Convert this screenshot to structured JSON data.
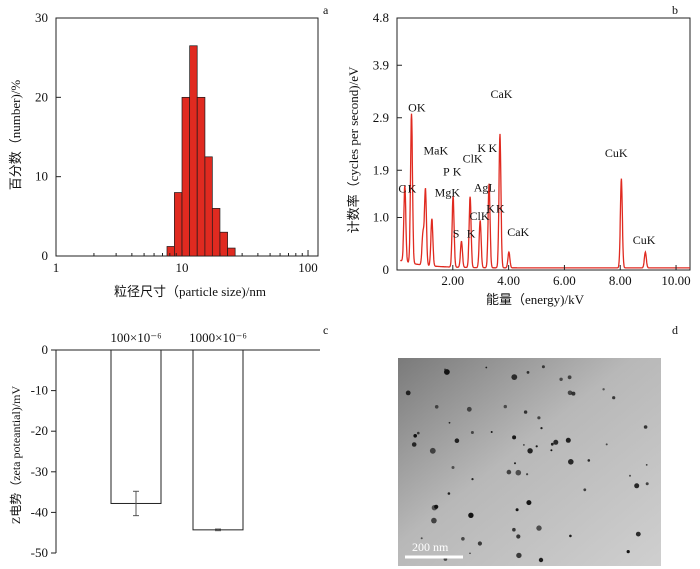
{
  "chart_data": [
    {
      "panel": "a",
      "type": "bar",
      "xlabel": "粒径尺寸（particle size)/nm",
      "ylabel": "百分数（number)/%",
      "xscale": "log",
      "xlim": [
        1,
        120
      ],
      "ylim": [
        0,
        30
      ],
      "xticks": [
        "1",
        "10",
        "100"
      ],
      "yticks": [
        "0",
        "10",
        "20",
        "30"
      ],
      "bar_color": "#e02a20",
      "bins": [
        {
          "from": 7.6,
          "to": 8.7,
          "value": 1.2
        },
        {
          "from": 8.7,
          "to": 10.0,
          "value": 8.0
        },
        {
          "from": 10.0,
          "to": 11.5,
          "value": 20.0
        },
        {
          "from": 11.5,
          "to": 13.2,
          "value": 26.5
        },
        {
          "from": 13.2,
          "to": 15.2,
          "value": 20.0
        },
        {
          "from": 15.2,
          "to": 17.4,
          "value": 12.5
        },
        {
          "from": 17.4,
          "to": 20.0,
          "value": 6.0
        },
        {
          "from": 20.0,
          "to": 23.0,
          "value": 3.0
        },
        {
          "from": 23.0,
          "to": 26.4,
          "value": 1.0
        }
      ]
    },
    {
      "panel": "b",
      "type": "line",
      "xlabel": "能量（energy)/kV",
      "ylabel": "计数率（cycles per second)/eV",
      "xlim": [
        0,
        10.5
      ],
      "ylim": [
        0,
        4.8
      ],
      "xticks": [
        "2.00",
        "4.00",
        "6.00",
        "8.00",
        "10.00"
      ],
      "yticks": [
        "0",
        "1.0",
        "1.9",
        "2.9",
        "3.9",
        "4.8"
      ],
      "line_color": "#e02a20",
      "peaks": [
        {
          "x": 0.28,
          "y": 1.45
        },
        {
          "x": 0.52,
          "y": 2.85
        },
        {
          "x": 0.93,
          "y": 0.6
        },
        {
          "x": 1.02,
          "y": 1.45
        },
        {
          "x": 1.25,
          "y": 0.9
        },
        {
          "x": 2.01,
          "y": 1.35
        },
        {
          "x": 2.31,
          "y": 0.5
        },
        {
          "x": 2.62,
          "y": 1.35
        },
        {
          "x": 2.98,
          "y": 0.9
        },
        {
          "x": 3.3,
          "y": 1.6
        },
        {
          "x": 3.69,
          "y": 2.55
        },
        {
          "x": 4.01,
          "y": 0.3
        },
        {
          "x": 8.04,
          "y": 1.7
        },
        {
          "x": 8.9,
          "y": 0.3
        }
      ],
      "annotations": [
        {
          "text": "C",
          "x": 0.05,
          "y": 1.48
        },
        {
          "text": "K",
          "x": 0.38,
          "y": 1.48
        },
        {
          "text": "OK",
          "x": 0.4,
          "y": 3.02
        },
        {
          "text": "MaK",
          "x": 0.95,
          "y": 2.2
        },
        {
          "text": "MgK",
          "x": 1.35,
          "y": 1.4
        },
        {
          "text": "P",
          "x": 1.65,
          "y": 1.8
        },
        {
          "text": "K",
          "x": 2.0,
          "y": 1.8
        },
        {
          "text": "ClK",
          "x": 2.35,
          "y": 2.05
        },
        {
          "text": "K",
          "x": 2.88,
          "y": 2.25
        },
        {
          "text": "K",
          "x": 3.28,
          "y": 2.25
        },
        {
          "text": "AgL",
          "x": 2.75,
          "y": 1.5
        },
        {
          "text": "S",
          "x": 2.0,
          "y": 0.62
        },
        {
          "text": "K",
          "x": 2.5,
          "y": 0.62
        },
        {
          "text": "ClK",
          "x": 2.6,
          "y": 0.95
        },
        {
          "text": "K",
          "x": 3.2,
          "y": 1.1
        },
        {
          "text": "K",
          "x": 3.55,
          "y": 1.1
        },
        {
          "text": "CaK",
          "x": 3.35,
          "y": 3.28
        },
        {
          "text": "CaK",
          "x": 3.95,
          "y": 0.65
        },
        {
          "text": "CuK",
          "x": 7.45,
          "y": 2.15
        },
        {
          "text": "CuK",
          "x": 8.45,
          "y": 0.5
        }
      ]
    },
    {
      "panel": "c",
      "type": "bar",
      "ylabel": "Z电势（zeta poteantial)/mV",
      "ylim": [
        -50,
        0
      ],
      "yticks": [
        "0",
        "-10",
        "-20",
        "-30",
        "-40",
        "-50"
      ],
      "categories": [
        "100×10⁻⁶",
        "1000×10⁻⁶"
      ],
      "values": [
        -37.8,
        -44.3
      ],
      "errors": [
        3.0,
        0.2
      ]
    },
    {
      "panel": "d",
      "type": "image",
      "scale_bar": "200 nm"
    }
  ]
}
